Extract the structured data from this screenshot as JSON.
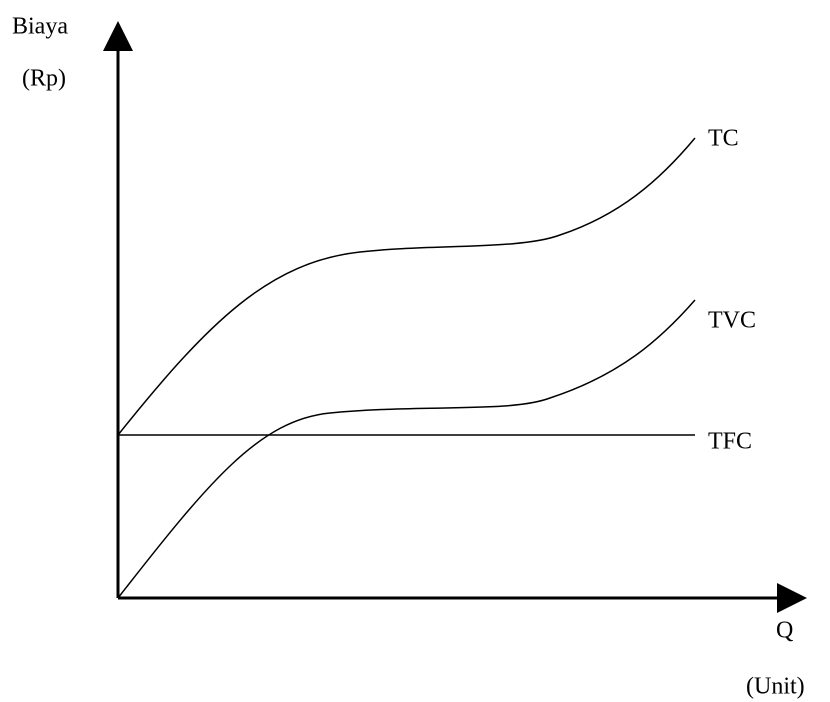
{
  "y_axis": {
    "label": "Biaya",
    "unit": "(Rp)"
  },
  "x_axis": {
    "label": "Q",
    "unit": "(Unit)"
  },
  "curves": [
    {
      "label": "TC"
    },
    {
      "label": "TVC"
    },
    {
      "label": "TFC"
    }
  ]
}
